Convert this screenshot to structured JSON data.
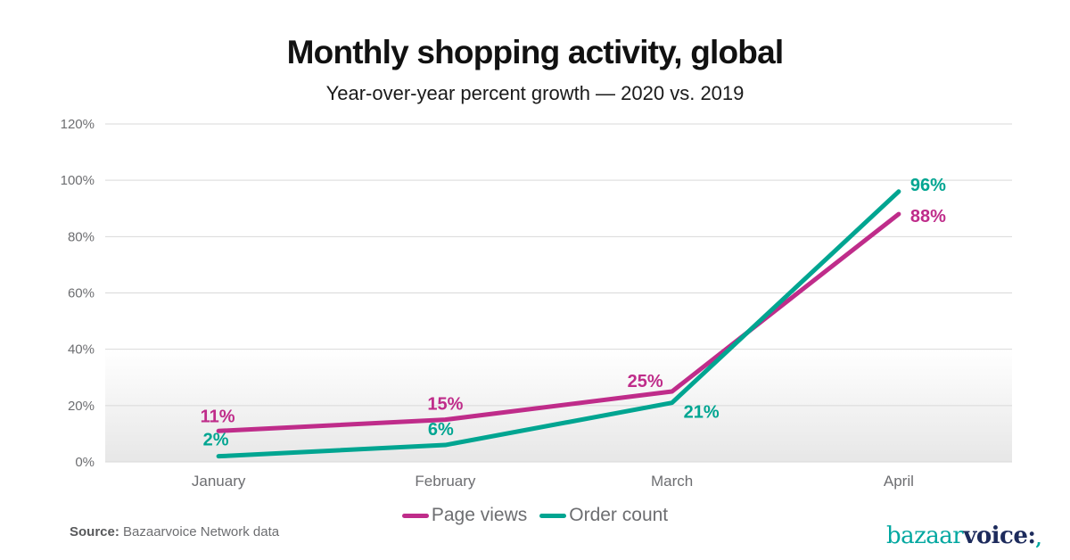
{
  "header": {
    "title": "Monthly shopping activity, global",
    "subtitle": "Year-over-year percent growth — 2020 vs. 2019"
  },
  "chart_data": {
    "type": "line",
    "categories": [
      "January",
      "February",
      "March",
      "April"
    ],
    "series": [
      {
        "name": "Page views",
        "color": "#bf2c8a",
        "values": [
          11,
          15,
          25,
          88
        ],
        "label_offsets": [
          [
            -1,
            -10,
            "middle"
          ],
          [
            0,
            -11,
            "middle"
          ],
          [
            -30,
            -5,
            "middle"
          ],
          [
            13,
            9,
            "start"
          ]
        ]
      },
      {
        "name": "Order count",
        "color": "#00a591",
        "values": [
          2,
          6,
          21,
          96
        ],
        "label_offsets": [
          [
            -3,
            -12,
            "middle"
          ],
          [
            -5,
            -11,
            "middle"
          ],
          [
            13,
            17,
            "start"
          ],
          [
            13,
            -1,
            "start"
          ]
        ]
      }
    ],
    "title": "Monthly shopping activity, global",
    "xlabel": "",
    "ylabel": "",
    "ylim": [
      0,
      120
    ],
    "y_ticks": [
      0,
      20,
      40,
      60,
      80,
      100,
      120
    ],
    "y_tick_suffix": "%",
    "grid": true,
    "legend_position": "bottom",
    "shade_below": 40,
    "shade_color": "#e7e7e7",
    "gridline_color": "#d9d9d9"
  },
  "footer": {
    "source_label": "Source:",
    "source_text": " Bazaarvoice Network data"
  },
  "logo": {
    "part1": "bazaar",
    "part2": "voice",
    "colon": ":",
    "comma": ",",
    "teal": "#00a7a0",
    "navy": "#1d2b5c"
  }
}
